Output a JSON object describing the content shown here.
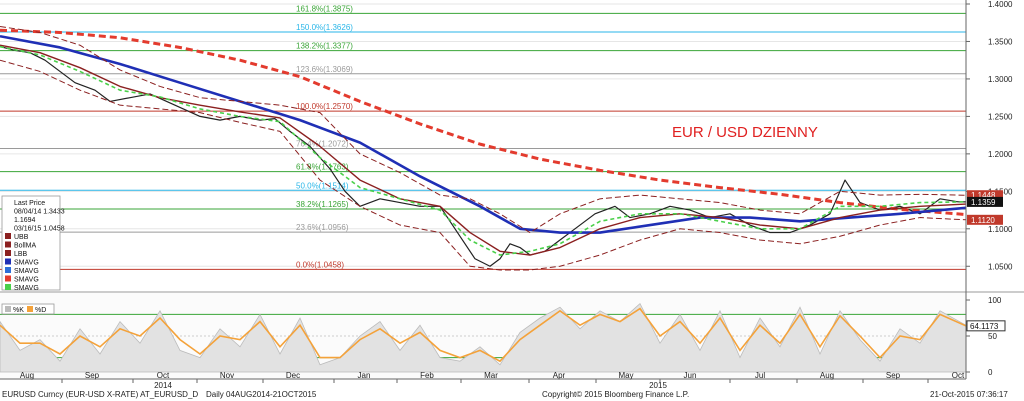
{
  "chart_data": {
    "type": "line",
    "title": "EUR / USD DZIENNY",
    "security": "EURUSD Curncy (EUR-USD X-RATE) AT_EURUSD_D",
    "range_text": "Daily 04AUG2014-21OCT2015",
    "copyright": "Copyright© 2015 Bloomberg Finance L.P.",
    "timestamp": "21-Oct-2015 07:36:17",
    "price_axis": {
      "ticks": [
        "1.4000",
        "1.3500",
        "1.3000",
        "1.2500",
        "1.2000",
        "1.1500",
        "1.1000",
        "1.0500"
      ],
      "ylim": [
        1.025,
        1.4
      ]
    },
    "price_tags": [
      {
        "value": "1.1448",
        "bg": "#c0392b"
      },
      {
        "value": "1.1359",
        "bg": "#111111"
      },
      {
        "value": "1.1120",
        "bg": "#c0392b"
      }
    ],
    "osc_axis": {
      "ticks": [
        "100",
        "50",
        "0"
      ],
      "ylim": [
        0,
        100
      ],
      "last_value": "64.1173"
    },
    "months": [
      "Aug",
      "Sep",
      "Oct",
      "Nov",
      "Dec",
      "Jan",
      "Feb",
      "Mar",
      "Apr",
      "May",
      "Jun",
      "Jul",
      "Aug",
      "Sep",
      "Oct"
    ],
    "years": [
      "2014",
      "2015"
    ],
    "fib_levels": [
      {
        "label": "161.8%(1.3875)",
        "value": 1.3875,
        "color": "#3aa537"
      },
      {
        "label": "150.0%(1.3626)",
        "value": 1.3626,
        "color": "#29b6e8"
      },
      {
        "label": "138.2%(1.3377)",
        "value": 1.3377,
        "color": "#3aa537"
      },
      {
        "label": "123.6%(1.3069)",
        "value": 1.3069,
        "color": "#9a9a9a"
      },
      {
        "label": "100.0%(1.2570)",
        "value": 1.257,
        "color": "#c0392b"
      },
      {
        "label": "76.4%(1.2072)",
        "value": 1.2072,
        "color": "#9a9a9a"
      },
      {
        "label": "61.8%(1.1763)",
        "value": 1.1763,
        "color": "#3aa537"
      },
      {
        "label": "50.0%(1.1514)",
        "value": 1.1514,
        "color": "#29b6e8"
      },
      {
        "label": "38.2%(1.1265)",
        "value": 1.1265,
        "color": "#3aa537"
      },
      {
        "label": "23.6%(1.0956)",
        "value": 1.0956,
        "color": "#9a9a9a"
      },
      {
        "label": "0.0%(1.0458)",
        "value": 1.0458,
        "color": "#c0392b"
      }
    ],
    "legend": {
      "title": "Last Price",
      "ohlc_lines": [
        "08/04/14 1.3433",
        "1.1694",
        "03/16/15 1.0458"
      ],
      "entries": [
        {
          "name": "UBB",
          "color": "#8b2020"
        },
        {
          "name": "BollMA",
          "color": "#8b2020"
        },
        {
          "name": "LBB",
          "color": "#8b2020"
        },
        {
          "name": "SMAVG",
          "color": "#1f2fb5"
        },
        {
          "name": "SMAVG",
          "color": "#2d6fd8"
        },
        {
          "name": "SMAVG",
          "color": "#e33b2e"
        },
        {
          "name": "SMAVG",
          "color": "#4ad04a"
        }
      ],
      "osc_entries": [
        {
          "name": "%K",
          "color": "#bbbbbb"
        },
        {
          "name": "%D",
          "color": "#f4a23a"
        }
      ]
    },
    "series": [
      {
        "name": "Last Price",
        "color": "#222222",
        "x": [
          0,
          15,
          30,
          45,
          60,
          75,
          95,
          110,
          130,
          150,
          175,
          200,
          220,
          240,
          260,
          275,
          290,
          310,
          330,
          345,
          360,
          380,
          400,
          420,
          440,
          460,
          475,
          490,
          500,
          510,
          520,
          530,
          545,
          560,
          575,
          595,
          615,
          630,
          650,
          670,
          690,
          710,
          730,
          750,
          770,
          790,
          810,
          830,
          845,
          860,
          880,
          900,
          920,
          940,
          958,
          966
        ],
        "y": [
          1.3433,
          1.338,
          1.335,
          1.325,
          1.31,
          1.295,
          1.285,
          1.27,
          1.275,
          1.28,
          1.265,
          1.25,
          1.245,
          1.25,
          1.245,
          1.247,
          1.23,
          1.21,
          1.18,
          1.15,
          1.13,
          1.14,
          1.135,
          1.13,
          1.13,
          1.09,
          1.06,
          1.05,
          1.06,
          1.08,
          1.075,
          1.065,
          1.07,
          1.085,
          1.1,
          1.12,
          1.13,
          1.115,
          1.12,
          1.13,
          1.125,
          1.115,
          1.12,
          1.105,
          1.095,
          1.095,
          1.105,
          1.12,
          1.165,
          1.135,
          1.125,
          1.13,
          1.12,
          1.14,
          1.136,
          1.1359
        ]
      },
      {
        "name": "SMAVG 200",
        "color": "#e33b2e",
        "x": [
          0,
          60,
          120,
          180,
          240,
          300,
          360,
          420,
          480,
          540,
          600,
          660,
          720,
          780,
          840,
          900,
          966
        ],
        "y": [
          1.365,
          1.362,
          1.355,
          1.342,
          1.325,
          1.303,
          1.27,
          1.24,
          1.213,
          1.193,
          1.178,
          1.165,
          1.155,
          1.146,
          1.135,
          1.126,
          1.119
        ]
      },
      {
        "name": "SMAVG 100",
        "color": "#1f2fb5",
        "x": [
          0,
          60,
          120,
          180,
          240,
          300,
          360,
          420,
          480,
          520,
          560,
          600,
          650,
          700,
          750,
          800,
          850,
          900,
          966
        ],
        "y": [
          1.357,
          1.342,
          1.32,
          1.295,
          1.27,
          1.245,
          1.215,
          1.17,
          1.13,
          1.1,
          1.095,
          1.095,
          1.105,
          1.115,
          1.115,
          1.11,
          1.115,
          1.12,
          1.128
        ]
      },
      {
        "name": "BollMA",
        "color": "#8b2020",
        "x": [
          0,
          40,
          80,
          120,
          160,
          200,
          240,
          280,
          320,
          360,
          400,
          440,
          470,
          500,
          530,
          560,
          600,
          640,
          680,
          720,
          760,
          800,
          840,
          880,
          920,
          966
        ],
        "y": [
          1.345,
          1.335,
          1.315,
          1.29,
          1.275,
          1.265,
          1.256,
          1.248,
          1.21,
          1.165,
          1.14,
          1.13,
          1.095,
          1.07,
          1.065,
          1.075,
          1.1,
          1.115,
          1.12,
          1.115,
          1.105,
          1.1,
          1.115,
          1.125,
          1.13,
          1.133
        ]
      },
      {
        "name": "SMAVG 20",
        "color": "#4ad04a",
        "x": [
          0,
          40,
          80,
          120,
          160,
          200,
          240,
          280,
          320,
          360,
          400,
          440,
          470,
          500,
          530,
          560,
          600,
          640,
          680,
          720,
          760,
          800,
          840,
          880,
          920,
          966
        ],
        "y": [
          1.343,
          1.332,
          1.31,
          1.285,
          1.276,
          1.26,
          1.25,
          1.243,
          1.195,
          1.155,
          1.14,
          1.125,
          1.085,
          1.065,
          1.07,
          1.08,
          1.11,
          1.12,
          1.12,
          1.11,
          1.1,
          1.1,
          1.13,
          1.13,
          1.135,
          1.136
        ]
      },
      {
        "name": "UBB",
        "color": "#8b2020",
        "x": [
          0,
          40,
          80,
          120,
          160,
          200,
          240,
          280,
          320,
          360,
          400,
          440,
          470,
          500,
          530,
          560,
          600,
          640,
          680,
          720,
          760,
          800,
          840,
          880,
          920,
          966
        ],
        "y": [
          1.37,
          1.362,
          1.345,
          1.312,
          1.29,
          1.275,
          1.27,
          1.265,
          1.255,
          1.2,
          1.175,
          1.145,
          1.14,
          1.12,
          1.095,
          1.12,
          1.14,
          1.145,
          1.14,
          1.135,
          1.125,
          1.12,
          1.15,
          1.145,
          1.146,
          1.1448
        ]
      },
      {
        "name": "LBB",
        "color": "#8b2020",
        "x": [
          0,
          40,
          80,
          120,
          160,
          200,
          240,
          280,
          320,
          360,
          400,
          440,
          470,
          500,
          530,
          560,
          600,
          640,
          680,
          720,
          760,
          800,
          840,
          880,
          920,
          966
        ],
        "y": [
          1.325,
          1.31,
          1.285,
          1.265,
          1.26,
          1.255,
          1.242,
          1.23,
          1.165,
          1.13,
          1.105,
          1.095,
          1.05,
          1.045,
          1.045,
          1.05,
          1.065,
          1.085,
          1.1,
          1.095,
          1.085,
          1.08,
          1.09,
          1.105,
          1.115,
          1.112
        ]
      }
    ],
    "oscillator": [
      {
        "name": "%K",
        "color": "#bbbbbb",
        "x": [
          0,
          20,
          40,
          60,
          80,
          100,
          120,
          140,
          160,
          180,
          200,
          220,
          240,
          260,
          280,
          300,
          320,
          340,
          360,
          380,
          400,
          420,
          440,
          460,
          480,
          500,
          520,
          540,
          560,
          580,
          600,
          620,
          640,
          660,
          680,
          700,
          720,
          740,
          760,
          780,
          800,
          820,
          840,
          860,
          880,
          900,
          920,
          940,
          966
        ],
        "y": [
          70,
          30,
          45,
          15,
          60,
          25,
          70,
          40,
          85,
          30,
          20,
          60,
          35,
          80,
          25,
          75,
          10,
          20,
          50,
          70,
          30,
          65,
          20,
          15,
          35,
          10,
          55,
          75,
          90,
          60,
          85,
          70,
          95,
          40,
          80,
          30,
          85,
          20,
          75,
          35,
          90,
          25,
          85,
          45,
          15,
          60,
          40,
          85,
          65
        ]
      },
      {
        "name": "%D",
        "color": "#f4a23a",
        "x": [
          0,
          20,
          40,
          60,
          80,
          100,
          120,
          140,
          160,
          180,
          200,
          220,
          240,
          260,
          280,
          300,
          320,
          340,
          360,
          380,
          400,
          420,
          440,
          460,
          480,
          500,
          520,
          540,
          560,
          580,
          600,
          620,
          640,
          660,
          680,
          700,
          720,
          740,
          760,
          780,
          800,
          820,
          840,
          860,
          880,
          900,
          920,
          940,
          966
        ],
        "y": [
          65,
          40,
          40,
          25,
          50,
          35,
          60,
          50,
          75,
          45,
          25,
          50,
          45,
          70,
          35,
          65,
          20,
          20,
          45,
          60,
          40,
          55,
          30,
          20,
          30,
          15,
          45,
          65,
          85,
          65,
          80,
          70,
          88,
          50,
          70,
          40,
          75,
          30,
          65,
          40,
          80,
          35,
          78,
          50,
          20,
          50,
          45,
          80,
          64
        ]
      }
    ]
  }
}
